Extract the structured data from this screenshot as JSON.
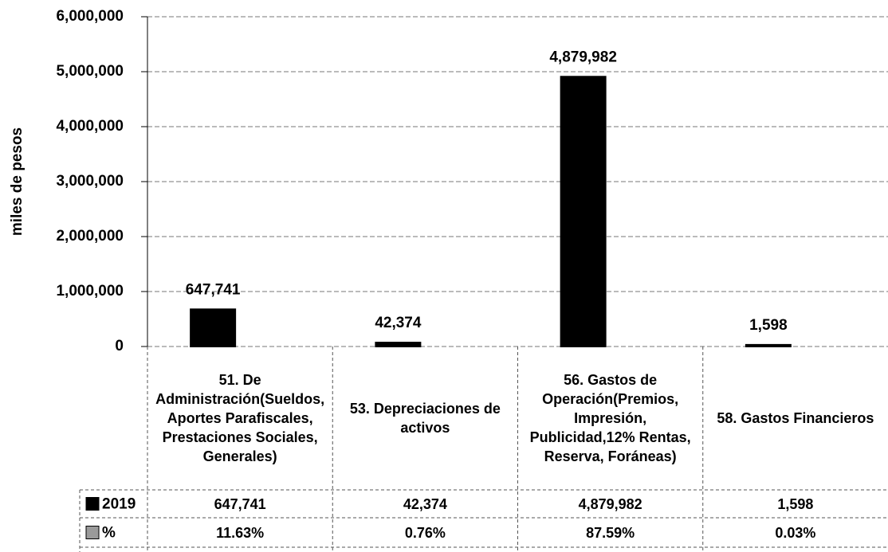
{
  "chart_data": {
    "type": "bar",
    "y_label": "miles de pesos",
    "categories": [
      "51. De Administración(Sueldos, Aportes Parafiscales, Prestaciones Sociales, Generales)",
      "53. Depreciaciones de activos",
      "56. Gastos de Operación(Premios, Impresión, Publicidad,12% Rentas, Reserva, Foráneas)",
      "58. Gastos Financieros"
    ],
    "series": [
      {
        "name": "2019",
        "color": "#000000",
        "values": [
          647741,
          42374,
          4879982,
          1598
        ],
        "value_labels": [
          "647,741",
          "42,374",
          "4,879,982",
          "1,598"
        ]
      },
      {
        "name": "%",
        "color": "#9a9a9a",
        "values": [
          11.63,
          0.76,
          87.59,
          0.03
        ],
        "value_labels": [
          "11.63%",
          "0.76%",
          "87.59%",
          "0.03%"
        ]
      }
    ],
    "ylim": [
      0,
      6000000
    ],
    "yticks": [
      {
        "value": 0,
        "label": "0"
      },
      {
        "value": 1000000,
        "label": "1,000,000"
      },
      {
        "value": 2000000,
        "label": "2,000,000"
      },
      {
        "value": 3000000,
        "label": "3,000,000"
      },
      {
        "value": 4000000,
        "label": "4,000,000"
      },
      {
        "value": 5000000,
        "label": "5,000,000"
      },
      {
        "value": 6000000,
        "label": "6,000,000"
      }
    ],
    "grid": true
  }
}
